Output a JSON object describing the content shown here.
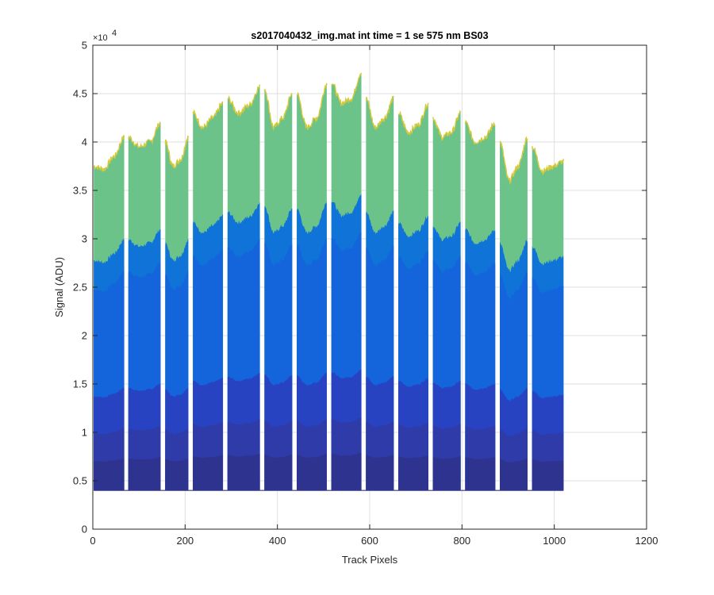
{
  "chart_data": {
    "type": "area",
    "title": "s2017040432_img.mat int time = 1 se  575 nm BS03",
    "xlabel": "Track Pixels",
    "ylabel": "Signal (ADU)",
    "y_exponent_label": "×10",
    "y_exponent_power": "4",
    "xlim": [
      0,
      1200
    ],
    "ylim": [
      0,
      5
    ],
    "y_scale_factor": 10000,
    "xticks": [
      0,
      200,
      400,
      600,
      800,
      1000,
      1200
    ],
    "yticks": [
      0,
      0.5,
      1,
      1.5,
      2,
      2.5,
      3,
      3.5,
      4,
      4.5,
      5
    ],
    "xtick_labels": [
      "0",
      "200",
      "400",
      "600",
      "800",
      "1000",
      "1200"
    ],
    "ytick_labels": [
      "0",
      "0.5",
      "1",
      "1.5",
      "2",
      "2.5",
      "3",
      "3.5",
      "4",
      "4.5",
      "5"
    ],
    "grid": true,
    "baseline": 0.4,
    "segments": [
      {
        "x0": 2,
        "x1": 68,
        "top": [
          3.75,
          3.72,
          3.85,
          4.05
        ]
      },
      {
        "x0": 77,
        "x1": 147,
        "top": [
          4.05,
          3.95,
          4.0,
          4.2
        ]
      },
      {
        "x0": 157,
        "x1": 207,
        "top": [
          4.0,
          3.75,
          3.82,
          4.05
        ]
      },
      {
        "x0": 217,
        "x1": 282,
        "top": [
          4.3,
          4.15,
          4.25,
          4.4
        ]
      },
      {
        "x0": 292,
        "x1": 362,
        "top": [
          4.45,
          4.3,
          4.38,
          4.57
        ]
      },
      {
        "x0": 372,
        "x1": 432,
        "top": [
          4.55,
          4.15,
          4.25,
          4.5
        ]
      },
      {
        "x0": 442,
        "x1": 507,
        "top": [
          4.5,
          4.15,
          4.25,
          4.6
        ]
      },
      {
        "x0": 517,
        "x1": 582,
        "top": [
          4.62,
          4.4,
          4.45,
          4.72
        ]
      },
      {
        "x0": 592,
        "x1": 652,
        "top": [
          4.45,
          4.15,
          4.25,
          4.45
        ]
      },
      {
        "x0": 662,
        "x1": 727,
        "top": [
          4.3,
          4.1,
          4.18,
          4.4
        ]
      },
      {
        "x0": 737,
        "x1": 797,
        "top": [
          4.25,
          4.05,
          4.1,
          4.3
        ]
      },
      {
        "x0": 807,
        "x1": 872,
        "top": [
          4.2,
          4.0,
          4.05,
          4.2
        ]
      },
      {
        "x0": 882,
        "x1": 942,
        "top": [
          4.0,
          3.6,
          3.75,
          4.05
        ]
      },
      {
        "x0": 952,
        "x1": 1020,
        "top": [
          3.95,
          3.7,
          3.75,
          3.8
        ]
      }
    ],
    "bands": [
      {
        "frac": 1.0,
        "color": "#6cc38a"
      },
      {
        "frac": 0.71,
        "color": "#0f73d8"
      },
      {
        "frac": 0.62,
        "color": "#1464dc"
      },
      {
        "frac": 0.29,
        "color": "#2743c2"
      },
      {
        "frac": 0.175,
        "color": "#2f3ba8"
      },
      {
        "frac": 0.09,
        "color": "#2e3390"
      }
    ],
    "top_edge_color": "#d6c93a",
    "band_note_colors": [
      "#d6c93a",
      "#6cc38a",
      "#0f73d8",
      "#1464dc",
      "#2743c2",
      "#2e3390"
    ]
  }
}
